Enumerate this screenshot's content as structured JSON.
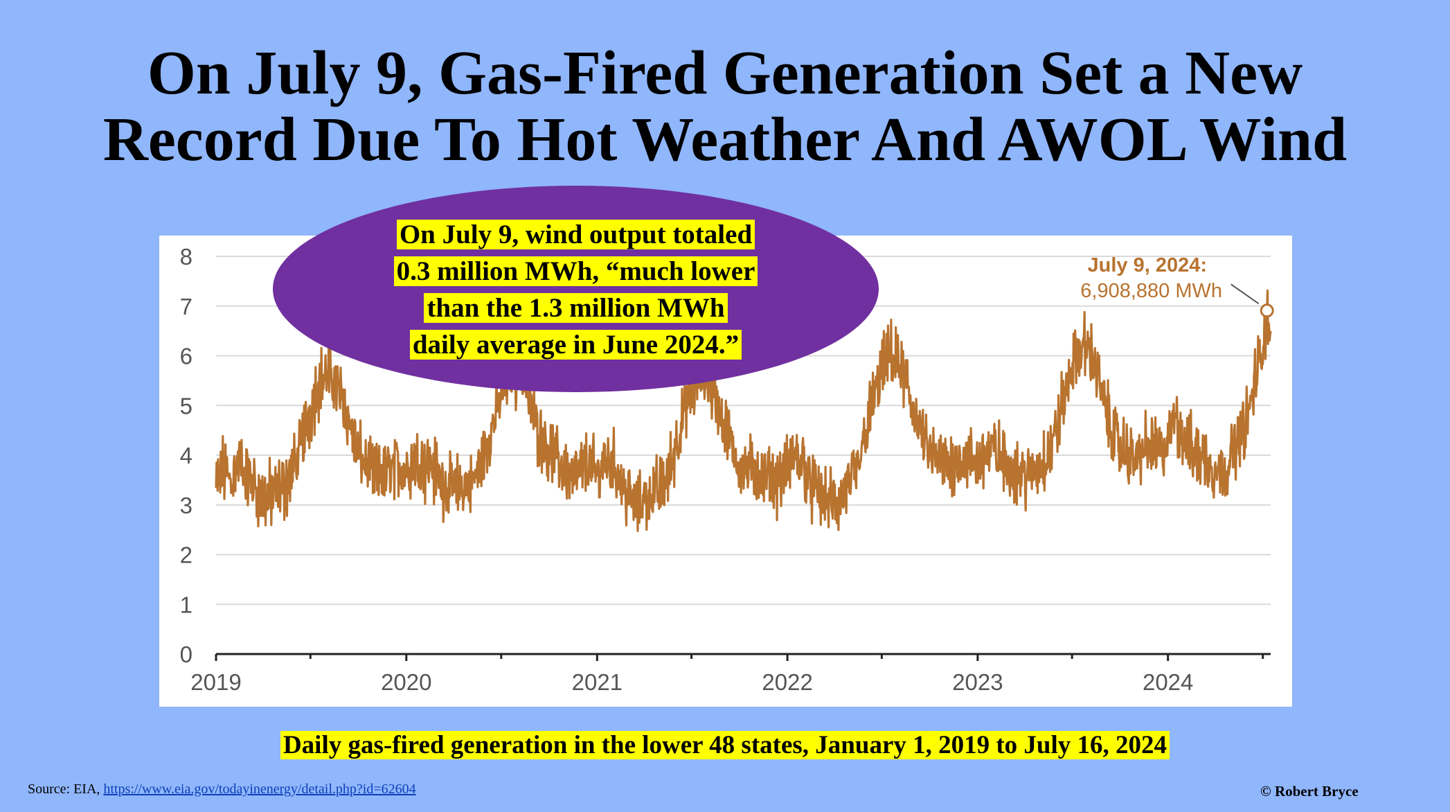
{
  "slide": {
    "title_line1": "On July 9, Gas-Fired Generation Set a New",
    "title_line2": "Record Due To Hot Weather And AWOL Wind",
    "callout": {
      "line1": "On July 9, wind output totaled",
      "line2": "0.3 million MWh, “much lower",
      "line3": "than the 1.3 million MWh",
      "line4": "daily average in June 2024.”"
    },
    "caption": "Daily gas-fired generation in the lower 48 states, January 1, 2019 to July 16, 2024",
    "source_prefix": "Source: EIA, ",
    "source_link": "https://www.eia.gov/todayinenergy/detail.php?id=62604",
    "copyright": "© Robert Bryce",
    "colors": {
      "background": "#90b6fc",
      "ellipse": "#7030a0",
      "highlight": "#ffff00",
      "series": "#b8732f",
      "annotation": "#b8732f"
    }
  },
  "chart_data": {
    "type": "line",
    "title": "",
    "xlabel": "",
    "ylabel": "",
    "x_range": [
      "2019-01-01",
      "2024-07-16"
    ],
    "ylim": [
      0,
      8
    ],
    "yticks": [
      "0",
      "1",
      "2",
      "3",
      "4",
      "5",
      "6",
      "7",
      "8"
    ],
    "xticks": [
      "2019",
      "2020",
      "2021",
      "2022",
      "2023",
      "2024"
    ],
    "grid": "horizontal",
    "series": [
      {
        "color": "#b8732f",
        "points": [
          [
            "2019-01-01",
            3.3
          ],
          [
            "2019-01-15",
            3.7
          ],
          [
            "2019-02-01",
            3.5
          ],
          [
            "2019-02-15",
            3.9
          ],
          [
            "2019-03-01",
            3.6
          ],
          [
            "2019-03-15",
            3.4
          ],
          [
            "2019-04-01",
            3.1
          ],
          [
            "2019-04-15",
            3.2
          ],
          [
            "2019-05-01",
            3.3
          ],
          [
            "2019-05-15",
            3.4
          ],
          [
            "2019-06-01",
            3.8
          ],
          [
            "2019-06-15",
            4.3
          ],
          [
            "2019-07-01",
            4.9
          ],
          [
            "2019-07-15",
            5.4
          ],
          [
            "2019-08-01",
            5.6
          ],
          [
            "2019-08-15",
            5.5
          ],
          [
            "2019-09-01",
            5.1
          ],
          [
            "2019-09-15",
            4.6
          ],
          [
            "2019-10-01",
            4.0
          ],
          [
            "2019-10-15",
            3.8
          ],
          [
            "2019-11-01",
            3.6
          ],
          [
            "2019-11-15",
            3.6
          ],
          [
            "2019-12-01",
            3.7
          ],
          [
            "2019-12-15",
            3.8
          ],
          [
            "2020-01-01",
            3.7
          ],
          [
            "2020-01-15",
            3.9
          ],
          [
            "2020-02-01",
            3.8
          ],
          [
            "2020-02-15",
            3.8
          ],
          [
            "2020-03-01",
            3.6
          ],
          [
            "2020-03-15",
            3.4
          ],
          [
            "2020-04-01",
            3.3
          ],
          [
            "2020-04-15",
            3.3
          ],
          [
            "2020-05-01",
            3.4
          ],
          [
            "2020-05-15",
            3.6
          ],
          [
            "2020-06-01",
            4.1
          ],
          [
            "2020-06-15",
            4.6
          ],
          [
            "2020-07-01",
            5.2
          ],
          [
            "2020-07-15",
            5.6
          ],
          [
            "2020-08-01",
            5.7
          ],
          [
            "2020-08-15",
            5.4
          ],
          [
            "2020-09-01",
            4.8
          ],
          [
            "2020-09-15",
            4.4
          ],
          [
            "2020-10-01",
            4.1
          ],
          [
            "2020-10-15",
            3.9
          ],
          [
            "2020-11-01",
            3.7
          ],
          [
            "2020-11-15",
            3.5
          ],
          [
            "2020-12-01",
            3.7
          ],
          [
            "2020-12-15",
            3.8
          ],
          [
            "2021-01-01",
            3.6
          ],
          [
            "2021-01-15",
            3.9
          ],
          [
            "2021-02-01",
            3.8
          ],
          [
            "2021-02-15",
            3.5
          ],
          [
            "2021-03-01",
            3.2
          ],
          [
            "2021-03-15",
            3.0
          ],
          [
            "2021-04-01",
            3.1
          ],
          [
            "2021-04-15",
            3.2
          ],
          [
            "2021-05-01",
            3.3
          ],
          [
            "2021-05-15",
            3.5
          ],
          [
            "2021-06-01",
            4.2
          ],
          [
            "2021-06-15",
            4.8
          ],
          [
            "2021-07-01",
            5.3
          ],
          [
            "2021-07-15",
            5.6
          ],
          [
            "2021-08-01",
            5.5
          ],
          [
            "2021-08-15",
            5.2
          ],
          [
            "2021-09-01",
            4.6
          ],
          [
            "2021-09-15",
            4.2
          ],
          [
            "2021-10-01",
            3.8
          ],
          [
            "2021-10-15",
            3.7
          ],
          [
            "2021-11-01",
            3.7
          ],
          [
            "2021-11-15",
            3.5
          ],
          [
            "2021-12-01",
            3.6
          ],
          [
            "2021-12-15",
            3.5
          ],
          [
            "2022-01-01",
            3.7
          ],
          [
            "2022-01-15",
            4.0
          ],
          [
            "2022-02-01",
            3.8
          ],
          [
            "2022-02-15",
            3.4
          ],
          [
            "2022-03-01",
            3.2
          ],
          [
            "2022-03-15",
            3.1
          ],
          [
            "2022-04-01",
            3.0
          ],
          [
            "2022-04-15",
            3.1
          ],
          [
            "2022-05-01",
            3.4
          ],
          [
            "2022-05-15",
            3.6
          ],
          [
            "2022-06-01",
            4.5
          ],
          [
            "2022-06-15",
            5.1
          ],
          [
            "2022-07-01",
            5.7
          ],
          [
            "2022-07-15",
            6.0
          ],
          [
            "2022-08-01",
            5.8
          ],
          [
            "2022-08-15",
            5.5
          ],
          [
            "2022-09-01",
            4.9
          ],
          [
            "2022-09-15",
            4.4
          ],
          [
            "2022-10-01",
            4.0
          ],
          [
            "2022-10-15",
            3.9
          ],
          [
            "2022-11-01",
            3.8
          ],
          [
            "2022-11-15",
            3.8
          ],
          [
            "2022-12-01",
            4.0
          ],
          [
            "2022-12-15",
            3.9
          ],
          [
            "2023-01-01",
            3.8
          ],
          [
            "2023-01-15",
            4.0
          ],
          [
            "2023-02-01",
            4.1
          ],
          [
            "2023-02-15",
            3.9
          ],
          [
            "2023-03-01",
            3.8
          ],
          [
            "2023-03-15",
            3.7
          ],
          [
            "2023-04-01",
            3.6
          ],
          [
            "2023-04-15",
            3.6
          ],
          [
            "2023-05-01",
            3.8
          ],
          [
            "2023-05-15",
            4.0
          ],
          [
            "2023-06-01",
            4.5
          ],
          [
            "2023-06-15",
            5.1
          ],
          [
            "2023-07-01",
            5.8
          ],
          [
            "2023-07-15",
            6.1
          ],
          [
            "2023-08-01",
            6.2
          ],
          [
            "2023-08-15",
            5.8
          ],
          [
            "2023-09-01",
            5.0
          ],
          [
            "2023-09-15",
            4.5
          ],
          [
            "2023-10-01",
            4.1
          ],
          [
            "2023-10-15",
            4.0
          ],
          [
            "2023-11-01",
            3.9
          ],
          [
            "2023-11-15",
            4.1
          ],
          [
            "2023-12-01",
            4.2
          ],
          [
            "2023-12-15",
            4.0
          ],
          [
            "2024-01-01",
            4.2
          ],
          [
            "2024-01-15",
            4.9
          ],
          [
            "2024-02-01",
            4.3
          ],
          [
            "2024-02-15",
            4.1
          ],
          [
            "2024-03-01",
            4.0
          ],
          [
            "2024-03-15",
            3.9
          ],
          [
            "2024-04-01",
            3.7
          ],
          [
            "2024-04-15",
            3.7
          ],
          [
            "2024-05-01",
            3.9
          ],
          [
            "2024-05-15",
            4.3
          ],
          [
            "2024-06-01",
            4.7
          ],
          [
            "2024-06-15",
            5.4
          ],
          [
            "2024-07-01",
            6.2
          ],
          [
            "2024-07-09",
            6.9
          ],
          [
            "2024-07-16",
            6.5
          ]
        ]
      }
    ],
    "annotation": {
      "date": "2024-07-09",
      "value": 6.90888,
      "label_line1": "July 9, 2024:",
      "label_line2": "6,908,880 MWh"
    }
  }
}
